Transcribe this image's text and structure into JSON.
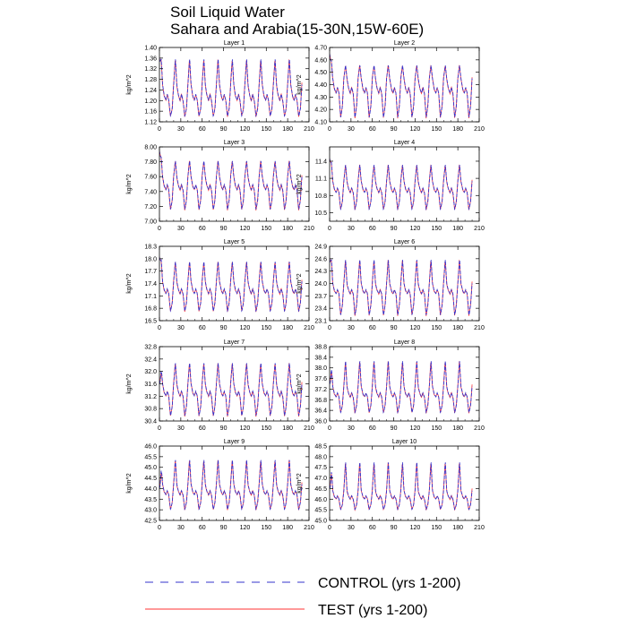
{
  "title": {
    "line1": "Soil Liquid Water",
    "line2": "Sahara and Arabia(15-30N,15W-60E)"
  },
  "legend": {
    "placement": "bottom-center",
    "entries": [
      {
        "label": "CONTROL (yrs 1-200)",
        "color": "#3333cc",
        "style": "dashed"
      },
      {
        "label": "TEST (yrs 1-200)",
        "color": "#ff3333",
        "style": "solid"
      }
    ]
  },
  "chart_data": [
    {
      "type": "line",
      "title": "Layer 1",
      "ylabel": "kg/m^2",
      "xlim": [
        0,
        210
      ],
      "ylim": [
        1.12,
        1.4
      ],
      "xticks": [
        0,
        30,
        60,
        90,
        120,
        150,
        180,
        210
      ],
      "yticks": [
        1.12,
        1.16,
        1.2,
        1.24,
        1.28,
        1.32,
        1.36,
        1.4
      ],
      "ytick_labels": [
        "1.12",
        "1.16",
        "1.20",
        "1.24",
        "1.28",
        "1.32",
        "1.36",
        "1.40"
      ],
      "period_years": 20,
      "n_years": 200,
      "start": 1.36,
      "peak": 1.36,
      "high": 1.26,
      "mid": 1.2,
      "trough": 1.14,
      "series": [
        {
          "name": "CONTROL (yrs 1-200)"
        },
        {
          "name": "TEST (yrs 1-200)"
        }
      ]
    },
    {
      "type": "line",
      "title": "Layer 2",
      "ylabel": "kg/m^2",
      "xlim": [
        0,
        210
      ],
      "ylim": [
        4.1,
        4.7
      ],
      "xticks": [
        0,
        30,
        60,
        90,
        120,
        150,
        180,
        210
      ],
      "yticks": [
        4.1,
        4.2,
        4.3,
        4.4,
        4.5,
        4.6,
        4.7
      ],
      "ytick_labels": [
        "4.10",
        "4.20",
        "4.30",
        "4.40",
        "4.50",
        "4.60",
        "4.70"
      ],
      "period_years": 20,
      "n_years": 200,
      "start": 4.65,
      "peak": 4.56,
      "high": 4.45,
      "mid": 4.33,
      "trough": 4.13,
      "series": [
        {
          "name": "CONTROL (yrs 1-200)"
        },
        {
          "name": "TEST (yrs 1-200)"
        }
      ]
    },
    {
      "type": "line",
      "title": "Layer 3",
      "ylabel": "kg/m^2",
      "xlim": [
        0,
        210
      ],
      "ylim": [
        7.0,
        8.0
      ],
      "xticks": [
        0,
        30,
        60,
        90,
        120,
        150,
        180,
        210
      ],
      "yticks": [
        7.0,
        7.2,
        7.4,
        7.6,
        7.8,
        8.0
      ],
      "ytick_labels": [
        "7.00",
        "7.20",
        "7.40",
        "7.60",
        "7.80",
        "8.00"
      ],
      "period_years": 20,
      "n_years": 200,
      "start": 7.95,
      "peak": 7.82,
      "high": 7.6,
      "mid": 7.42,
      "trough": 7.15,
      "series": [
        {
          "name": "CONTROL (yrs 1-200)"
        },
        {
          "name": "TEST (yrs 1-200)"
        }
      ]
    },
    {
      "type": "line",
      "title": "Layer 4",
      "ylabel": "kg/m^2",
      "xlim": [
        0,
        210
      ],
      "ylim": [
        10.35,
        11.65
      ],
      "xticks": [
        0,
        30,
        60,
        90,
        120,
        150,
        180,
        210
      ],
      "yticks": [
        10.5,
        10.8,
        11.1,
        11.4
      ],
      "ytick_labels": [
        "10.5",
        "10.8",
        "11.1",
        "11.4"
      ],
      "period_years": 20,
      "n_years": 200,
      "start": 11.45,
      "peak": 11.35,
      "high": 11.05,
      "mid": 10.85,
      "trough": 10.55,
      "series": [
        {
          "name": "CONTROL (yrs 1-200)"
        },
        {
          "name": "TEST (yrs 1-200)"
        }
      ]
    },
    {
      "type": "line",
      "title": "Layer 5",
      "ylabel": "kg/m^2",
      "xlim": [
        0,
        210
      ],
      "ylim": [
        16.5,
        18.3
      ],
      "xticks": [
        0,
        30,
        60,
        90,
        120,
        150,
        180,
        210
      ],
      "yticks": [
        16.5,
        16.8,
        17.1,
        17.4,
        17.7,
        18.0,
        18.3
      ],
      "ytick_labels": [
        "16.5",
        "16.8",
        "17.1",
        "17.4",
        "17.7",
        "18.0",
        "18.3"
      ],
      "period_years": 20,
      "n_years": 200,
      "start": 18.05,
      "peak": 17.95,
      "high": 17.45,
      "mid": 17.15,
      "trough": 16.72,
      "series": [
        {
          "name": "CONTROL (yrs 1-200)"
        },
        {
          "name": "TEST (yrs 1-200)"
        }
      ]
    },
    {
      "type": "line",
      "title": "Layer 6",
      "ylabel": "kg/m^2",
      "xlim": [
        0,
        210
      ],
      "ylim": [
        23.1,
        24.9
      ],
      "xticks": [
        0,
        30,
        60,
        90,
        120,
        150,
        180,
        210
      ],
      "yticks": [
        23.1,
        23.4,
        23.7,
        24.0,
        24.3,
        24.6,
        24.9
      ],
      "ytick_labels": [
        "23.1",
        "23.4",
        "23.7",
        "24.0",
        "24.3",
        "24.6",
        "24.9"
      ],
      "period_years": 20,
      "n_years": 200,
      "start": 24.6,
      "peak": 24.6,
      "high": 24.0,
      "mid": 23.75,
      "trough": 23.22,
      "series": [
        {
          "name": "CONTROL (yrs 1-200)"
        },
        {
          "name": "TEST (yrs 1-200)"
        }
      ]
    },
    {
      "type": "line",
      "title": "Layer 7",
      "ylabel": "kg/m^2",
      "xlim": [
        0,
        210
      ],
      "ylim": [
        30.4,
        32.8
      ],
      "xticks": [
        0,
        30,
        60,
        90,
        120,
        150,
        180,
        210
      ],
      "yticks": [
        30.4,
        30.8,
        31.2,
        31.6,
        32.0,
        32.4,
        32.8
      ],
      "ytick_labels": [
        "30.4",
        "30.8",
        "31.2",
        "31.6",
        "32.0",
        "32.4",
        "32.8"
      ],
      "period_years": 20,
      "n_years": 200,
      "start": 31.6,
      "peak": 32.3,
      "high": 31.6,
      "mid": 31.2,
      "trough": 30.55,
      "series": [
        {
          "name": "CONTROL (yrs 1-200)"
        },
        {
          "name": "TEST (yrs 1-200)"
        }
      ]
    },
    {
      "type": "line",
      "title": "Layer 8",
      "ylabel": "kg/m^2",
      "xlim": [
        0,
        210
      ],
      "ylim": [
        36.0,
        38.8
      ],
      "xticks": [
        0,
        30,
        60,
        90,
        120,
        150,
        180,
        210
      ],
      "yticks": [
        36.0,
        36.4,
        36.8,
        37.2,
        37.6,
        38.0,
        38.4,
        38.8
      ],
      "ytick_labels": [
        "36.0",
        "36.4",
        "36.8",
        "37.2",
        "37.6",
        "38.0",
        "38.4",
        "38.8"
      ],
      "period_years": 20,
      "n_years": 200,
      "start": 37.4,
      "peak": 38.3,
      "high": 37.3,
      "mid": 36.9,
      "trough": 36.3,
      "series": [
        {
          "name": "CONTROL (yrs 1-200)"
        },
        {
          "name": "TEST (yrs 1-200)"
        }
      ]
    },
    {
      "type": "line",
      "title": "Layer 9",
      "ylabel": "kg/m^2",
      "xlim": [
        0,
        210
      ],
      "ylim": [
        42.5,
        46.0
      ],
      "xticks": [
        0,
        30,
        60,
        90,
        120,
        150,
        180,
        210
      ],
      "yticks": [
        42.5,
        43.0,
        43.5,
        44.0,
        44.5,
        45.0,
        45.5,
        46.0
      ],
      "ytick_labels": [
        "42.5",
        "43.0",
        "43.5",
        "44.0",
        "44.5",
        "45.0",
        "45.5",
        "46.0"
      ],
      "period_years": 20,
      "n_years": 200,
      "start": 44.0,
      "peak": 45.4,
      "high": 44.2,
      "mid": 43.7,
      "trough": 43.0,
      "series": [
        {
          "name": "CONTROL (yrs 1-200)"
        },
        {
          "name": "TEST (yrs 1-200)"
        }
      ]
    },
    {
      "type": "line",
      "title": "Layer 10",
      "ylabel": "kg/m^2",
      "xlim": [
        0,
        210
      ],
      "ylim": [
        45.0,
        48.5
      ],
      "xticks": [
        0,
        30,
        60,
        90,
        120,
        150,
        180,
        210
      ],
      "yticks": [
        45.0,
        45.5,
        46.0,
        46.5,
        47.0,
        47.5,
        48.0,
        48.5
      ],
      "ytick_labels": [
        "45.0",
        "45.5",
        "46.0",
        "46.5",
        "47.0",
        "47.5",
        "48.0",
        "48.5"
      ],
      "period_years": 20,
      "n_years": 200,
      "start": 46.5,
      "peak": 47.8,
      "high": 46.4,
      "mid": 46.0,
      "trough": 45.5,
      "series": [
        {
          "name": "CONTROL (yrs 1-200)"
        },
        {
          "name": "TEST (yrs 1-200)"
        }
      ]
    }
  ]
}
